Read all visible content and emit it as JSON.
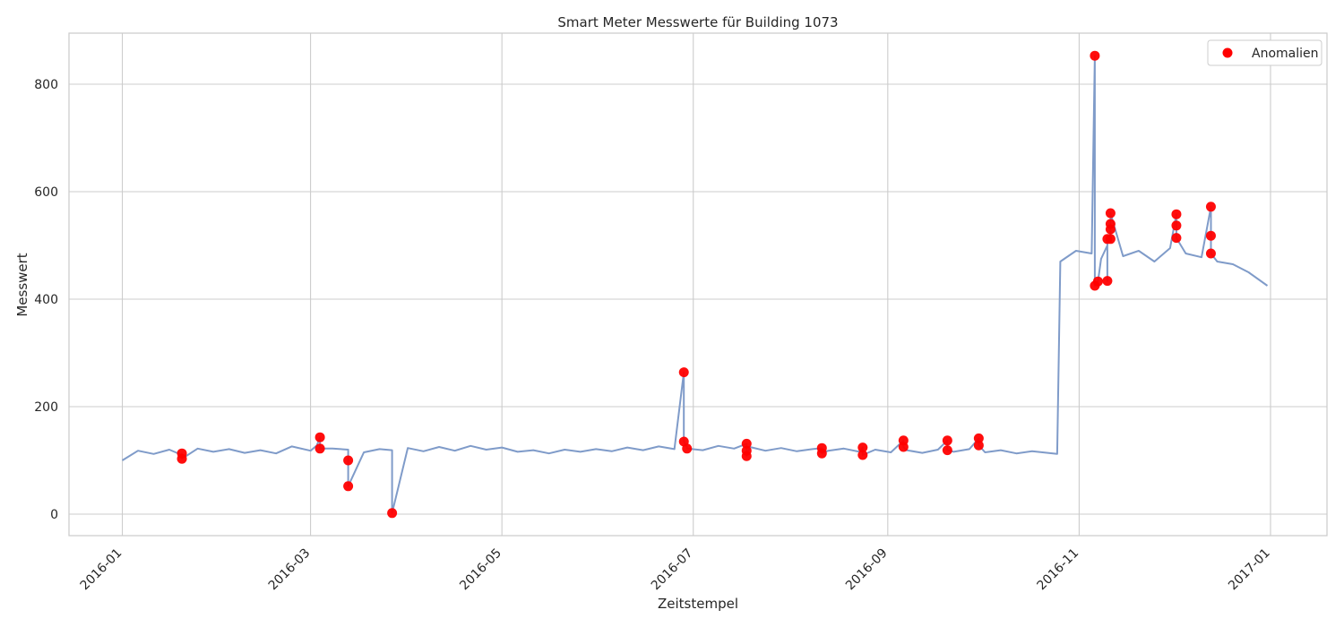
{
  "chart_data": {
    "type": "line",
    "title": "Smart Meter Messwerte für Building 1073",
    "xlabel": "Zeitstempel",
    "ylabel": "Messwert",
    "x_range": [
      "2015-12-15",
      "2017-01-19"
    ],
    "ylim": [
      -40,
      895
    ],
    "x_ticks": [
      "2016-01",
      "2016-03",
      "2016-05",
      "2016-07",
      "2016-09",
      "2016-11",
      "2017-01"
    ],
    "y_ticks": [
      0,
      200,
      400,
      600,
      800
    ],
    "grid": true,
    "legend_position": "top-right",
    "colors": {
      "series": "#7f9bc9",
      "anomaly": "#ff0000",
      "grid": "#cccccc",
      "background": "#ffffff"
    },
    "series": [
      {
        "x": [
          "2016-01-01",
          "2016-01-06",
          "2016-01-11",
          "2016-01-16",
          "2016-01-20",
          "2016-01-25",
          "2016-01-30",
          "2016-02-04",
          "2016-02-09",
          "2016-02-14",
          "2016-02-19",
          "2016-02-24",
          "2016-03-01",
          "2016-03-03",
          "2016-03-08",
          "2016-03-13",
          "2016-03-18",
          "2016-03-23",
          "2016-03-27",
          "2016-04-01",
          "2016-04-06",
          "2016-04-11",
          "2016-04-16",
          "2016-04-21",
          "2016-04-26",
          "2016-05-01",
          "2016-05-06",
          "2016-05-11",
          "2016-05-16",
          "2016-05-21",
          "2016-05-26",
          "2016-05-31",
          "2016-06-05",
          "2016-06-10",
          "2016-06-15",
          "2016-06-20",
          "2016-06-25",
          "2016-06-29",
          "2016-07-04",
          "2016-07-09",
          "2016-07-14",
          "2016-07-19",
          "2016-07-24",
          "2016-07-29",
          "2016-08-03",
          "2016-08-08",
          "2016-08-13",
          "2016-08-18",
          "2016-08-23",
          "2016-08-28",
          "2016-09-02",
          "2016-09-07",
          "2016-09-12",
          "2016-09-17",
          "2016-09-22",
          "2016-09-27",
          "2016-10-02",
          "2016-10-07",
          "2016-10-12",
          "2016-10-17",
          "2016-10-22",
          "2016-10-25",
          "2016-10-26",
          "2016-10-31",
          "2016-11-05",
          "2016-11-08",
          "2016-11-10",
          "2016-11-15",
          "2016-11-20",
          "2016-11-25",
          "2016-11-30",
          "2016-12-05",
          "2016-12-10",
          "2016-12-15",
          "2016-12-20",
          "2016-12-25",
          "2016-12-31"
        ],
        "y": [
          100,
          118,
          112,
          120,
          110,
          122,
          116,
          121,
          114,
          119,
          113,
          126,
          118,
          128,
          122,
          120,
          115,
          121,
          119,
          123,
          117,
          125,
          118,
          127,
          120,
          124,
          116,
          119,
          113,
          120,
          116,
          121,
          117,
          124,
          119,
          126,
          121,
          125,
          119,
          127,
          122,
          125,
          118,
          123,
          117,
          121,
          118,
          122,
          116,
          120,
          115,
          119,
          114,
          120,
          116,
          121,
          115,
          119,
          113,
          117,
          114,
          112,
          470,
          490,
          485,
          475,
          500,
          480,
          490,
          470,
          495,
          485,
          478,
          470,
          465,
          450,
          425
        ]
      }
    ],
    "anomalies": {
      "name": "Anomalien",
      "x": [
        "2016-01-20",
        "2016-01-20",
        "2016-03-04",
        "2016-03-04",
        "2016-03-13",
        "2016-03-13",
        "2016-03-27",
        "2016-06-28",
        "2016-06-28",
        "2016-06-29",
        "2016-07-18",
        "2016-07-18",
        "2016-07-18",
        "2016-08-11",
        "2016-08-11",
        "2016-08-24",
        "2016-08-24",
        "2016-09-06",
        "2016-09-06",
        "2016-09-20",
        "2016-09-20",
        "2016-09-30",
        "2016-09-30",
        "2016-11-06",
        "2016-11-06",
        "2016-11-07",
        "2016-11-10",
        "2016-11-10",
        "2016-11-11",
        "2016-11-11",
        "2016-11-11",
        "2016-11-11",
        "2016-12-02",
        "2016-12-02",
        "2016-12-02",
        "2016-12-13",
        "2016-12-13",
        "2016-12-13"
      ],
      "y": [
        113,
        103,
        143,
        122,
        100,
        52,
        2,
        264,
        135,
        122,
        131,
        118,
        108,
        123,
        113,
        124,
        110,
        137,
        125,
        137,
        119,
        141,
        128,
        853,
        425,
        433,
        434,
        512,
        512,
        530,
        540,
        560,
        558,
        537,
        514,
        572,
        518,
        485
      ]
    }
  },
  "legend": {
    "label": "Anomalien"
  }
}
